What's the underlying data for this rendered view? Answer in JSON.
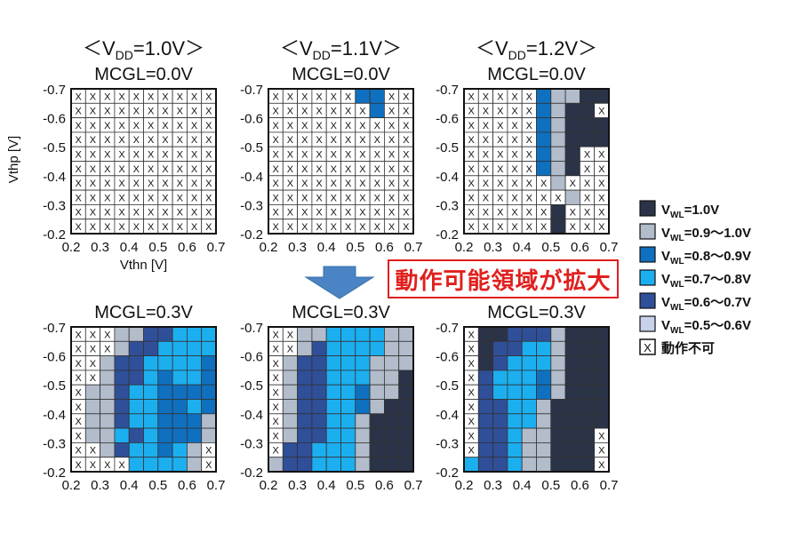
{
  "banner_text": "動作可能領域が拡大",
  "colors": {
    "A": "#2a3347",
    "B": "#b2bccb",
    "C": "#0f70c0",
    "D": "#1caff0",
    "E": "#2f4f99",
    "F": "#c7d1ea",
    "arrow": "#4a84c4",
    "banner": "#e0201e"
  },
  "legend": [
    {
      "key": "A",
      "main": "V",
      "sub": "WL",
      "text": "=1.0V"
    },
    {
      "key": "B",
      "main": "V",
      "sub": "WL",
      "text": "=0.9～1.0V"
    },
    {
      "key": "C",
      "main": "V",
      "sub": "WL",
      "text": "=0.8～0.9V"
    },
    {
      "key": "D",
      "main": "V",
      "sub": "WL",
      "text": "=0.7～0.8V"
    },
    {
      "key": "E",
      "main": "V",
      "sub": "WL",
      "text": "=0.6～0.7V"
    },
    {
      "key": "F",
      "main": "V",
      "sub": "WL",
      "text": "=0.5～0.6V"
    },
    {
      "key": "X",
      "main": "",
      "sub": "",
      "text": "動作不可"
    }
  ],
  "chart_data": [
    {
      "type": "heatmap",
      "title_prefix": "＜V",
      "title_sub": "DD",
      "title_suffix": "=1.0V＞",
      "subtitle": "MCGL=0.0V",
      "xlabel": "Vthn [V]",
      "ylabel": "Vthp [V]",
      "xticks": [
        "0.2",
        "0.3",
        "0.4",
        "0.5",
        "0.6",
        "0.7"
      ],
      "yticks": [
        "-0.7",
        "-0.6",
        "-0.5",
        "-0.4",
        "-0.3",
        "-0.2"
      ],
      "xlim": [
        0.2,
        0.7
      ],
      "ylim": [
        -0.7,
        -0.2
      ],
      "grid": [
        "XXXXXXXXXX",
        "XXXXXXXXXX",
        "XXXXXXXXXX",
        "XXXXXXXXXX",
        "XXXXXXXXXX",
        "XXXXXXXXXX",
        "XXXXXXXXXX",
        "XXXXXXXXXX",
        "XXXXXXXXXX",
        "XXXXXXXXXX"
      ]
    },
    {
      "type": "heatmap",
      "title_prefix": "＜V",
      "title_sub": "DD",
      "title_suffix": "=1.1V＞",
      "subtitle": "MCGL=0.0V",
      "xlabel": "",
      "ylabel": "",
      "xticks": [
        "0.2",
        "0.3",
        "0.4",
        "0.5",
        "0.6",
        "0.7"
      ],
      "yticks": [
        "-0.7",
        "-0.6",
        "-0.5",
        "-0.4",
        "-0.3",
        "-0.2"
      ],
      "xlim": [
        0.2,
        0.7
      ],
      "ylim": [
        -0.7,
        -0.2
      ],
      "grid": [
        "XXXXXXCCXX",
        "XXXXXXXCXX",
        "XXXXXXXXXX",
        "XXXXXXXXXX",
        "XXXXXXXXXX",
        "XXXXXXXXXX",
        "XXXXXXXXXX",
        "XXXXXXXXXX",
        "XXXXXXXXXX",
        "XXXXXXXXXX"
      ]
    },
    {
      "type": "heatmap",
      "title_prefix": "＜V",
      "title_sub": "DD",
      "title_suffix": "=1.2V＞",
      "subtitle": "MCGL=0.0V",
      "xlabel": "",
      "ylabel": "",
      "xticks": [
        "0.2",
        "0.3",
        "0.4",
        "0.5",
        "0.6",
        "0.7"
      ],
      "yticks": [
        "-0.7",
        "-0.6",
        "-0.5",
        "-0.4",
        "-0.3",
        "-0.2"
      ],
      "xlim": [
        0.2,
        0.7
      ],
      "ylim": [
        -0.7,
        -0.2
      ],
      "grid": [
        "XXXXXCBBAA",
        "XXXXXCBAAX",
        "XXXXXCBAAA",
        "XXXXXCBAAA",
        "XXXXXCBAXX",
        "XXXXXCBAXX",
        "XXXXXXBXXX",
        "XXXXXXXBXX",
        "XXXXXXAXXX",
        "XXXXXXAXXX"
      ]
    },
    {
      "type": "heatmap",
      "title_prefix": "",
      "title_sub": "",
      "title_suffix": "",
      "subtitle": "MCGL=0.3V",
      "xlabel": "",
      "ylabel": "",
      "xticks": [
        "0.2",
        "0.3",
        "0.4",
        "0.5",
        "0.6",
        "0.7"
      ],
      "yticks": [
        "-0.7",
        "-0.6",
        "-0.5",
        "-0.4",
        "-0.3",
        "-0.2"
      ],
      "xlim": [
        0.2,
        0.7
      ],
      "ylim": [
        -0.7,
        -0.2
      ],
      "grid": [
        "XXXBBEEDDD",
        "XXXBEEDDDD",
        "XXBEEDDDDC",
        "XXBEEDCDDC",
        "XBBEDDCCCC",
        "XBBEDDCCDC",
        "XBBEDDCCCB",
        "XBBDEDCCCB",
        "XXBEDDCDBX",
        "XXXXDDDDBX"
      ]
    },
    {
      "type": "heatmap",
      "title_prefix": "",
      "title_sub": "",
      "title_suffix": "",
      "subtitle": "MCGL=0.3V",
      "xlabel": "",
      "ylabel": "",
      "xticks": [
        "0.2",
        "0.3",
        "0.4",
        "0.5",
        "0.6",
        "0.7"
      ],
      "yticks": [
        "-0.7",
        "-0.6",
        "-0.5",
        "-0.4",
        "-0.3",
        "-0.2"
      ],
      "xlim": [
        0.2,
        0.7
      ],
      "ylim": [
        -0.7,
        -0.2
      ],
      "grid": [
        "XXBBDDDDBB",
        "XXBEDDDDBB",
        "XBEEDDDBBB",
        "XBEEDDDBBA",
        "XBEEDDCBBA",
        "XBEEDDCBAA",
        "XBEEDDBAAA",
        "XBEEDDBAAA",
        "XEEDDDBAAA",
        "BEEDDDBAAA"
      ]
    },
    {
      "type": "heatmap",
      "title_prefix": "",
      "title_sub": "",
      "title_suffix": "",
      "subtitle": "MCGL=0.3V",
      "xlabel": "",
      "ylabel": "",
      "xticks": [
        "0.2",
        "0.3",
        "0.4",
        "0.5",
        "0.6",
        "0.7"
      ],
      "yticks": [
        "-0.7",
        "-0.6",
        "-0.5",
        "-0.4",
        "-0.3",
        "-0.2"
      ],
      "xlim": [
        0.2,
        0.7
      ],
      "ylim": [
        -0.7,
        -0.2
      ],
      "grid": [
        "XAAEEEBAAA",
        "XAEEDDBAAA",
        "XAEDDDBAAA",
        "XEDDDCBAAA",
        "XEDDDCBAAA",
        "XEEDDBAAAA",
        "XEEDDBAAAA",
        "XEEDBBAAAX",
        "XEEDBBAAAX",
        "DEEDBBAAAX"
      ]
    }
  ]
}
